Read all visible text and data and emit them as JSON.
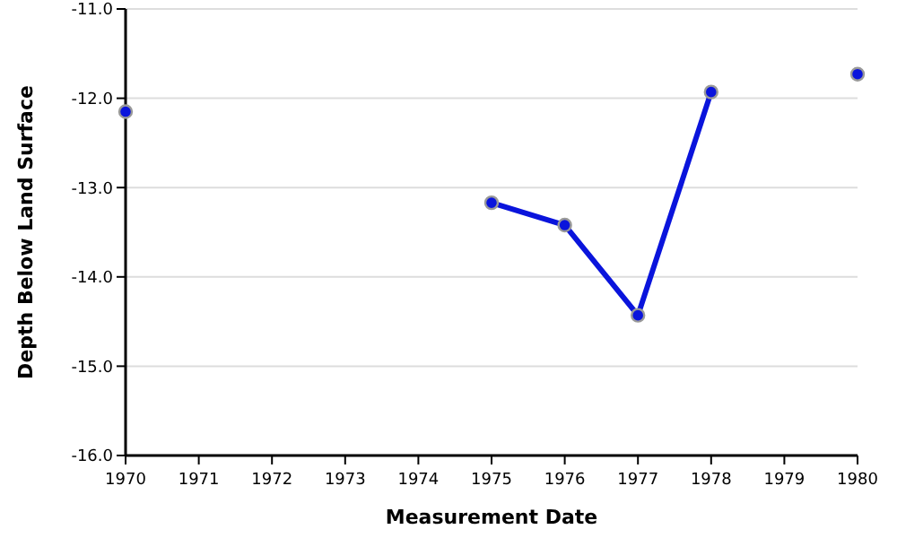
{
  "chart_data": {
    "type": "line",
    "xlabel": "Measurement Date",
    "ylabel": "Depth Below Land Surface",
    "x": [
      1970,
      1971,
      1972,
      1973,
      1974,
      1975,
      1976,
      1977,
      1978,
      1979,
      1980
    ],
    "series": [
      {
        "color": "#0a14dc",
        "values": [
          -12.15,
          null,
          null,
          null,
          null,
          -13.17,
          -13.42,
          -14.43,
          -11.93,
          null,
          -11.73
        ]
      }
    ],
    "xlim": [
      1970,
      1980
    ],
    "xticks": [
      1970,
      1971,
      1972,
      1973,
      1974,
      1975,
      1976,
      1977,
      1978,
      1979,
      1980
    ],
    "ylim": [
      -16,
      -11
    ],
    "yticks": [
      {
        "value": -16,
        "label": "-16.0"
      },
      {
        "value": -15,
        "label": "-15.0"
      },
      {
        "value": -14,
        "label": "-14.0"
      },
      {
        "value": -13,
        "label": "-13.0"
      },
      {
        "value": -12,
        "label": "-12.0"
      },
      {
        "value": -11,
        "label": "-11.0"
      }
    ],
    "grid": "y",
    "marker": "circle",
    "line_style": "solid"
  }
}
